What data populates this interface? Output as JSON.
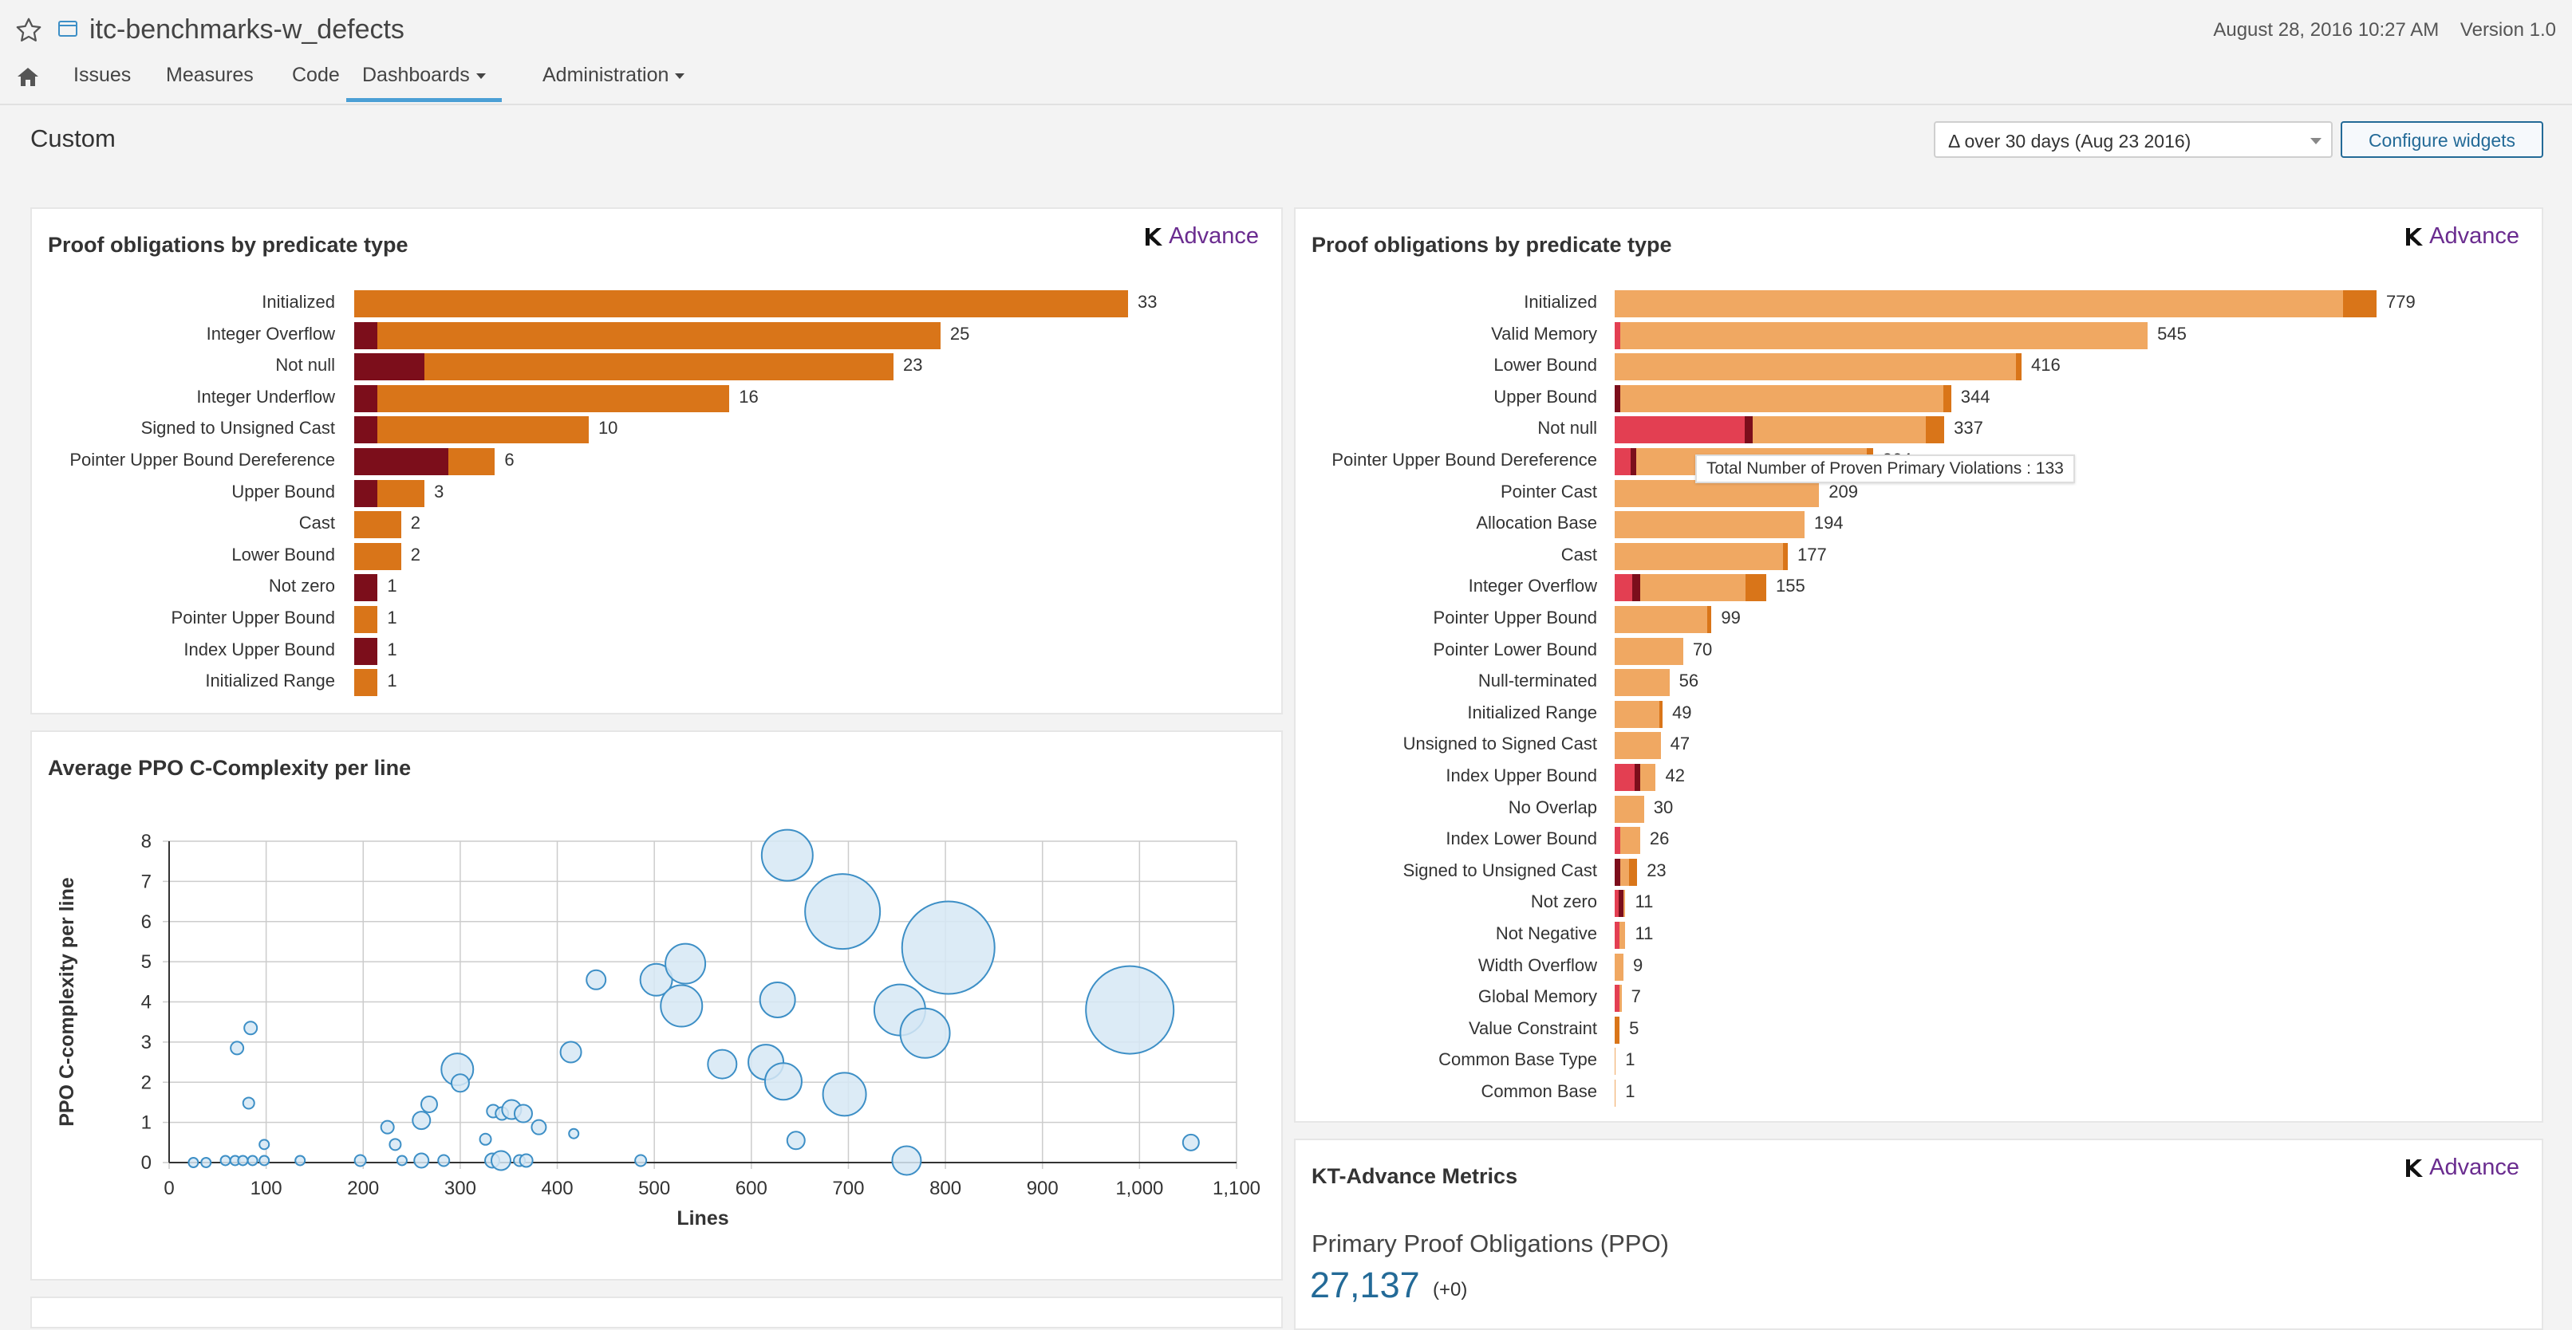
{
  "header": {
    "project_title": "itc-benchmarks-w_defects",
    "timestamp": "August 28, 2016 10:27 AM",
    "version": "Version 1.0",
    "nav": [
      "Issues",
      "Measures",
      "Code",
      "Dashboards",
      "Administration"
    ],
    "active_nav": "Dashboards"
  },
  "page": {
    "title": "Custom",
    "period": "Δ over 30 days (Aug 23 2016)",
    "configure_label": "Configure widgets"
  },
  "brand": {
    "name": "Advance"
  },
  "colors": {
    "dark_red": "#7c0e1b",
    "orange": "#d97519",
    "light_orange": "#f0a862",
    "bright_red": "#e33f52",
    "red": "#c2162e",
    "bubble_fill": "#d6e8f4",
    "bubble_stroke": "#3d8fc6"
  },
  "widget_left": {
    "title": "Proof obligations by predicate type",
    "bars": [
      {
        "label": "Initialized",
        "total": 33,
        "segments": [
          0,
          33
        ]
      },
      {
        "label": "Integer Overflow",
        "total": 25,
        "segments": [
          1,
          24
        ]
      },
      {
        "label": "Not null",
        "total": 23,
        "segments": [
          3,
          20
        ]
      },
      {
        "label": "Integer Underflow",
        "total": 16,
        "segments": [
          1,
          15
        ]
      },
      {
        "label": "Signed to Unsigned Cast",
        "total": 10,
        "segments": [
          1,
          9
        ]
      },
      {
        "label": "Pointer Upper Bound Dereference",
        "total": 6,
        "segments": [
          4,
          2
        ]
      },
      {
        "label": "Upper Bound",
        "total": 3,
        "segments": [
          1,
          2
        ]
      },
      {
        "label": "Cast",
        "total": 2,
        "segments": [
          0,
          2
        ]
      },
      {
        "label": "Lower Bound",
        "total": 2,
        "segments": [
          0,
          2
        ]
      },
      {
        "label": "Not zero",
        "total": 1,
        "segments": [
          1,
          0
        ]
      },
      {
        "label": "Pointer Upper Bound",
        "total": 1,
        "segments": [
          0,
          1
        ]
      },
      {
        "label": "Index Upper Bound",
        "total": 1,
        "segments": [
          1,
          0
        ]
      },
      {
        "label": "Initialized Range",
        "total": 1,
        "segments": [
          0,
          1
        ]
      }
    ],
    "max": 33
  },
  "widget_right": {
    "title": "Proof obligations by predicate type",
    "tooltip": "Total Number of Proven Primary Violations : 133",
    "max": 779,
    "bars": [
      {
        "label": "Initialized",
        "total": 779,
        "segments": [
          0,
          0,
          745,
          34
        ]
      },
      {
        "label": "Valid Memory",
        "total": 545,
        "segments": [
          6,
          0,
          539,
          0
        ]
      },
      {
        "label": "Lower Bound",
        "total": 416,
        "segments": [
          0,
          0,
          410,
          6
        ]
      },
      {
        "label": "Upper Bound",
        "total": 344,
        "segments": [
          0,
          6,
          330,
          8
        ]
      },
      {
        "label": "Not null",
        "total": 337,
        "segments": [
          133,
          8,
          177,
          19
        ]
      },
      {
        "label": "Pointer Upper Bound Dereference",
        "total": 264,
        "segments": [
          16,
          6,
          236,
          6
        ]
      },
      {
        "label": "Pointer Cast",
        "total": 209,
        "segments": [
          0,
          0,
          209,
          0
        ]
      },
      {
        "label": "Allocation Base",
        "total": 194,
        "segments": [
          0,
          0,
          194,
          0
        ]
      },
      {
        "label": "Cast",
        "total": 177,
        "segments": [
          0,
          0,
          172,
          5
        ]
      },
      {
        "label": "Integer Overflow",
        "total": 155,
        "segments": [
          18,
          8,
          108,
          21
        ]
      },
      {
        "label": "Pointer Upper Bound",
        "total": 99,
        "segments": [
          0,
          0,
          95,
          4
        ]
      },
      {
        "label": "Pointer Lower Bound",
        "total": 70,
        "segments": [
          0,
          0,
          70,
          0
        ]
      },
      {
        "label": "Null-terminated",
        "total": 56,
        "segments": [
          0,
          0,
          56,
          0
        ]
      },
      {
        "label": "Initialized Range",
        "total": 49,
        "segments": [
          0,
          0,
          46,
          3
        ]
      },
      {
        "label": "Unsigned to Signed Cast",
        "total": 47,
        "segments": [
          0,
          0,
          47,
          0
        ]
      },
      {
        "label": "Index Upper Bound",
        "total": 42,
        "segments": [
          20,
          6,
          16,
          0
        ]
      },
      {
        "label": "No Overlap",
        "total": 30,
        "segments": [
          0,
          0,
          30,
          0
        ]
      },
      {
        "label": "Index Lower Bound",
        "total": 26,
        "segments": [
          6,
          0,
          20,
          0
        ]
      },
      {
        "label": "Signed to Unsigned Cast",
        "total": 23,
        "segments": [
          0,
          6,
          9,
          8
        ]
      },
      {
        "label": "Not zero",
        "total": 11,
        "segments": [
          4,
          5,
          2,
          0
        ]
      },
      {
        "label": "Not Negative",
        "total": 11,
        "segments": [
          5,
          0,
          6,
          0
        ]
      },
      {
        "label": "Width Overflow",
        "total": 9,
        "segments": [
          0,
          0,
          9,
          0
        ]
      },
      {
        "label": "Global Memory",
        "total": 7,
        "segments": [
          5,
          0,
          2,
          0
        ]
      },
      {
        "label": "Value Constraint",
        "total": 5,
        "segments": [
          0,
          0,
          0,
          5
        ]
      },
      {
        "label": "Common Base Type",
        "total": 1,
        "segments": [
          0,
          0,
          1,
          0
        ]
      },
      {
        "label": "Common Base",
        "total": 1,
        "segments": [
          0,
          0,
          1,
          0
        ]
      }
    ]
  },
  "bubble_widget": {
    "title": "Average PPO C-Complexity per line",
    "chart_data": {
      "type": "scatter",
      "xlabel": "Lines",
      "ylabel": "PPO C-complexity per line",
      "xlim": [
        0,
        1100
      ],
      "ylim": [
        0,
        8
      ],
      "x_ticks": [
        "0",
        "100",
        "200",
        "300",
        "400",
        "500",
        "600",
        "700",
        "800",
        "900",
        "1,000",
        "1,100"
      ],
      "y_ticks": [
        "0",
        "1",
        "2",
        "3",
        "4",
        "5",
        "6",
        "7",
        "8"
      ],
      "points": [
        {
          "x": 25,
          "y": 0.0,
          "r": 6
        },
        {
          "x": 38,
          "y": 0.0,
          "r": 6
        },
        {
          "x": 58,
          "y": 0.05,
          "r": 6
        },
        {
          "x": 68,
          "y": 0.05,
          "r": 6
        },
        {
          "x": 76,
          "y": 0.05,
          "r": 6
        },
        {
          "x": 86,
          "y": 0.05,
          "r": 6
        },
        {
          "x": 98,
          "y": 0.05,
          "r": 6
        },
        {
          "x": 98,
          "y": 0.45,
          "r": 6
        },
        {
          "x": 135,
          "y": 0.05,
          "r": 6
        },
        {
          "x": 70,
          "y": 2.85,
          "r": 8
        },
        {
          "x": 84,
          "y": 3.35,
          "r": 8
        },
        {
          "x": 82,
          "y": 1.48,
          "r": 7
        },
        {
          "x": 197,
          "y": 0.05,
          "r": 7
        },
        {
          "x": 225,
          "y": 0.88,
          "r": 8
        },
        {
          "x": 233,
          "y": 0.45,
          "r": 7
        },
        {
          "x": 240,
          "y": 0.05,
          "r": 6
        },
        {
          "x": 260,
          "y": 0.05,
          "r": 9
        },
        {
          "x": 260,
          "y": 1.05,
          "r": 11
        },
        {
          "x": 268,
          "y": 1.45,
          "r": 10
        },
        {
          "x": 283,
          "y": 0.05,
          "r": 7
        },
        {
          "x": 297,
          "y": 2.32,
          "r": 20
        },
        {
          "x": 300,
          "y": 1.98,
          "r": 11
        },
        {
          "x": 326,
          "y": 0.58,
          "r": 7
        },
        {
          "x": 333,
          "y": 0.05,
          "r": 9
        },
        {
          "x": 334,
          "y": 1.28,
          "r": 8
        },
        {
          "x": 342,
          "y": 0.05,
          "r": 12
        },
        {
          "x": 343,
          "y": 1.22,
          "r": 8
        },
        {
          "x": 353,
          "y": 1.32,
          "r": 12
        },
        {
          "x": 361,
          "y": 0.05,
          "r": 7
        },
        {
          "x": 365,
          "y": 1.22,
          "r": 11
        },
        {
          "x": 368,
          "y": 0.05,
          "r": 8
        },
        {
          "x": 381,
          "y": 0.88,
          "r": 9
        },
        {
          "x": 414,
          "y": 2.75,
          "r": 13
        },
        {
          "x": 417,
          "y": 0.72,
          "r": 6
        },
        {
          "x": 440,
          "y": 4.55,
          "r": 12
        },
        {
          "x": 486,
          "y": 0.05,
          "r": 7
        },
        {
          "x": 502,
          "y": 4.55,
          "r": 20
        },
        {
          "x": 532,
          "y": 4.95,
          "r": 25
        },
        {
          "x": 528,
          "y": 3.9,
          "r": 26
        },
        {
          "x": 570,
          "y": 2.45,
          "r": 18
        },
        {
          "x": 615,
          "y": 2.5,
          "r": 22
        },
        {
          "x": 627,
          "y": 4.05,
          "r": 22
        },
        {
          "x": 637,
          "y": 7.65,
          "r": 32
        },
        {
          "x": 646,
          "y": 0.55,
          "r": 11
        },
        {
          "x": 633,
          "y": 2.02,
          "r": 23
        },
        {
          "x": 694,
          "y": 6.25,
          "r": 47
        },
        {
          "x": 696,
          "y": 1.7,
          "r": 27
        },
        {
          "x": 753,
          "y": 3.8,
          "r": 32
        },
        {
          "x": 760,
          "y": 0.05,
          "r": 18
        },
        {
          "x": 779,
          "y": 3.22,
          "r": 31
        },
        {
          "x": 803,
          "y": 5.35,
          "r": 58
        },
        {
          "x": 990,
          "y": 3.8,
          "r": 55
        },
        {
          "x": 1053,
          "y": 0.5,
          "r": 10
        }
      ]
    }
  },
  "metrics_widget": {
    "title": "KT-Advance Metrics",
    "subtitle": "Primary Proof Obligations (PPO)",
    "value": "27,137",
    "delta": "(+0)"
  }
}
